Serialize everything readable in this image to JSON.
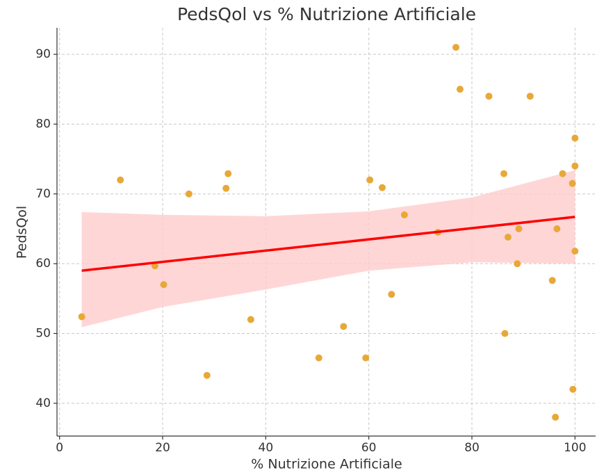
{
  "chart_data": {
    "type": "scatter",
    "title": "PedsQol vs % Nutrizione Artificiale",
    "x_label": "% Nutrizione Artificiale",
    "y_label": "PedsQol",
    "xlim": [
      -0.5,
      104
    ],
    "ylim": [
      35.3,
      93.8
    ],
    "xticks": [
      0,
      20,
      40,
      60,
      80,
      100
    ],
    "yticks": [
      40,
      50,
      60,
      70,
      80,
      90
    ],
    "grid": true,
    "points": {
      "color": "#e8a838",
      "x": [
        4.3,
        11.8,
        18.5,
        20.2,
        25.1,
        28.6,
        32.3,
        32.7,
        37.1,
        50.3,
        55.1,
        59.4,
        60.2,
        62.6,
        64.4,
        66.9,
        73.4,
        76.9,
        77.7,
        83.3,
        86.2,
        86.4,
        87,
        88.8,
        89.1,
        91.3,
        95.6,
        96.2,
        96.5,
        97.6,
        99.5,
        99.6,
        100,
        100,
        100
      ],
      "y": [
        52.4,
        72,
        59.7,
        57,
        70,
        44,
        70.8,
        72.9,
        52,
        46.5,
        51,
        46.5,
        72,
        70.9,
        55.6,
        67,
        64.5,
        91,
        85,
        84,
        72.9,
        50,
        63.8,
        60,
        65,
        84,
        57.6,
        38,
        65,
        72.9,
        71.5,
        42,
        78,
        74,
        61.8
      ]
    },
    "fit": {
      "color": "#ff0000",
      "x": [
        4.3,
        100
      ],
      "y": [
        59.0,
        66.7
      ]
    },
    "band": {
      "color": "#ffcccc",
      "x": [
        4.3,
        20,
        40,
        60,
        80,
        100
      ],
      "upper": [
        67.4,
        67.0,
        66.8,
        67.5,
        69.5,
        73.4
      ],
      "lower": [
        50.9,
        53.8,
        56.3,
        59.0,
        60.2,
        60.0
      ]
    }
  }
}
